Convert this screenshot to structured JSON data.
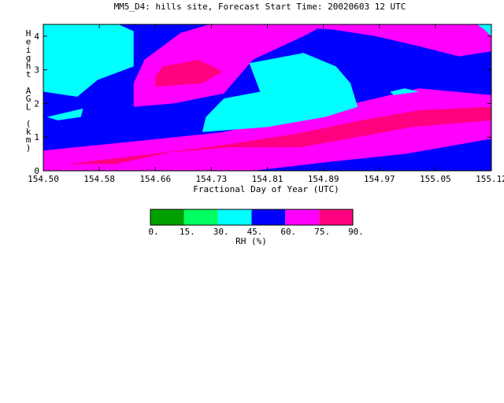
{
  "chart_data": {
    "type": "heatmap",
    "title": "MM5_D4: hills site,  Forecast Start Time: 20020603 12 UTC",
    "xlabel": "Fractional Day of Year (UTC)",
    "ylabel": "Height AGL (km)",
    "x_ticks": [
      "154.50",
      "154.58",
      "154.66",
      "154.73",
      "154.81",
      "154.89",
      "154.97",
      "155.05",
      "155.12"
    ],
    "y_ticks": [
      "0",
      "1",
      "2",
      "3",
      "4"
    ],
    "xlim": [
      154.5,
      155.12
    ],
    "ylim": [
      0,
      4.35
    ],
    "colorbar": {
      "label": "RH (%)",
      "ticks": [
        "0.",
        "15.",
        "30.",
        "45.",
        "60.",
        "75.",
        "90."
      ],
      "levels": [
        0,
        15,
        30,
        45,
        60,
        75,
        90
      ],
      "colors": [
        "#00a000",
        "#00ff60",
        "#00ffff",
        "#0000ff",
        "#ff00ff",
        "#ff0080"
      ]
    },
    "regions": [
      {
        "level": "45-60",
        "color": "#0000ff",
        "points": [
          [
            154.5,
            0
          ],
          [
            155.12,
            0
          ],
          [
            155.12,
            4.35
          ],
          [
            154.5,
            4.35
          ]
        ]
      },
      {
        "level": "30-45",
        "color": "#00ffff",
        "points": [
          [
            154.5,
            4.35
          ],
          [
            154.604,
            4.35
          ],
          [
            154.625,
            4.15
          ],
          [
            154.625,
            3.1
          ],
          [
            154.575,
            2.7
          ],
          [
            154.547,
            2.2
          ],
          [
            154.5,
            2.35
          ]
        ]
      },
      {
        "level": "30-45",
        "color": "#00ffff",
        "points": [
          [
            154.505,
            1.6
          ],
          [
            154.555,
            1.85
          ],
          [
            154.552,
            1.6
          ],
          [
            154.52,
            1.5
          ]
        ]
      },
      {
        "level": "60-75",
        "color": "#ff00ff",
        "points": [
          [
            154.625,
            1.9
          ],
          [
            154.68,
            2.0
          ],
          [
            154.75,
            2.3
          ],
          [
            154.79,
            3.3
          ],
          [
            154.865,
            4.05
          ],
          [
            154.89,
            4.35
          ],
          [
            154.73,
            4.35
          ],
          [
            154.69,
            4.1
          ],
          [
            154.64,
            3.3
          ],
          [
            154.625,
            2.6
          ]
        ]
      },
      {
        "level": "75-90",
        "color": "#ff0080",
        "points": [
          [
            154.655,
            2.5
          ],
          [
            154.72,
            2.6
          ],
          [
            154.748,
            2.95
          ],
          [
            154.715,
            3.3
          ],
          [
            154.665,
            3.1
          ],
          [
            154.655,
            2.8
          ]
        ]
      },
      {
        "level": "60-75",
        "color": "#ff00ff",
        "points": [
          [
            154.5,
            0
          ],
          [
            154.79,
            0
          ],
          [
            154.89,
            0.25
          ],
          [
            155.0,
            0.5
          ],
          [
            155.12,
            0.95
          ],
          [
            155.12,
            2.25
          ],
          [
            155.02,
            2.45
          ],
          [
            154.93,
            2.0
          ],
          [
            154.84,
            1.6
          ],
          [
            154.75,
            1.15
          ],
          [
            154.66,
            0.95
          ],
          [
            154.5,
            0.6
          ]
        ]
      },
      {
        "level": "75-90",
        "color": "#ff0080",
        "points": [
          [
            154.534,
            0.2
          ],
          [
            154.65,
            0.5
          ],
          [
            154.745,
            0.75
          ],
          [
            154.85,
            1.1
          ],
          [
            154.94,
            1.5
          ],
          [
            155.02,
            1.8
          ],
          [
            155.12,
            1.9
          ],
          [
            155.12,
            1.5
          ],
          [
            155.01,
            1.3
          ],
          [
            154.96,
            1.1
          ],
          [
            154.855,
            0.7
          ],
          [
            154.76,
            0.7
          ],
          [
            154.675,
            0.55
          ],
          [
            154.6,
            0.2
          ]
        ]
      },
      {
        "level": "60-75",
        "color": "#ff00ff",
        "points": [
          [
            154.78,
            4.35
          ],
          [
            155.12,
            4.35
          ],
          [
            155.12,
            3.55
          ],
          [
            155.075,
            3.4
          ],
          [
            155.02,
            3.7
          ],
          [
            154.96,
            4.0
          ],
          [
            154.9,
            4.2
          ]
        ]
      },
      {
        "level": "30-45",
        "color": "#00ffff",
        "points": [
          [
            154.72,
            1.15
          ],
          [
            154.81,
            1.3
          ],
          [
            154.89,
            1.6
          ],
          [
            154.935,
            1.9
          ],
          [
            154.925,
            2.6
          ],
          [
            154.905,
            3.1
          ],
          [
            154.86,
            3.5
          ],
          [
            154.785,
            3.2
          ],
          [
            154.8,
            2.35
          ],
          [
            154.75,
            2.15
          ],
          [
            154.725,
            1.6
          ]
        ]
      },
      {
        "level": "30-45",
        "color": "#00ffff",
        "points": [
          [
            154.985,
            2.25
          ],
          [
            155.02,
            2.35
          ],
          [
            155.0,
            2.45
          ],
          [
            154.98,
            2.35
          ]
        ]
      },
      {
        "level": "30-45",
        "color": "#00ffff",
        "points": [
          [
            155.1,
            4.35
          ],
          [
            155.12,
            4.35
          ],
          [
            155.12,
            4.0
          ],
          [
            155.11,
            4.2
          ]
        ]
      }
    ]
  }
}
